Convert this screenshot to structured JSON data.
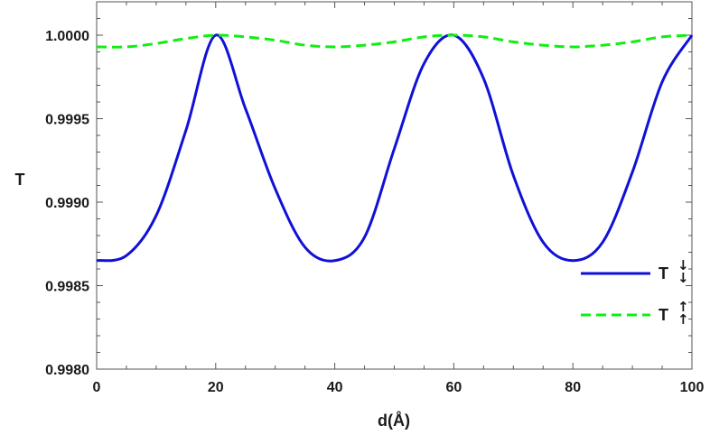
{
  "chart_data": {
    "type": "line",
    "title": "",
    "xlabel": "d(Å)",
    "ylabel": "T",
    "xlim": [
      0,
      100
    ],
    "ylim": [
      0.998,
      1.0002
    ],
    "grid": false,
    "legend_position": "right",
    "xticks": [
      0,
      20,
      40,
      60,
      80,
      100
    ],
    "xtick_labels": [
      "0",
      "20",
      "40",
      "60",
      "80",
      "100"
    ],
    "yticks": [
      0.998,
      0.9985,
      0.999,
      0.9995,
      1.0
    ],
    "ytick_labels": [
      "0.9980",
      "0.9985",
      "0.9990",
      "0.9995",
      "1.0000"
    ],
    "x": [
      0,
      5,
      10,
      15,
      20,
      25,
      30,
      35,
      40,
      45,
      50,
      55,
      60,
      65,
      70,
      75,
      80,
      85,
      90,
      95,
      100
    ],
    "series": [
      {
        "name": "T",
        "arrows": "↓↓",
        "color": "#1010d8",
        "style": "solid",
        "values": [
          0.99865,
          0.99868,
          0.99892,
          0.99943,
          1.0,
          0.99956,
          0.99908,
          0.99873,
          0.99865,
          0.99879,
          0.99932,
          0.99983,
          1.0,
          0.99974,
          0.99916,
          0.99876,
          0.99865,
          0.99876,
          0.99918,
          0.99972,
          1.0
        ]
      },
      {
        "name": "T",
        "arrows": "↑↑",
        "color": "#11ee11",
        "style": "dashed",
        "values": [
          0.99993,
          0.99993,
          0.99995,
          0.99998,
          1.0,
          0.99999,
          0.99997,
          0.99994,
          0.99993,
          0.99994,
          0.99996,
          0.99999,
          1.0,
          0.99999,
          0.99996,
          0.99994,
          0.99993,
          0.99994,
          0.99996,
          0.99999,
          1.0
        ]
      }
    ]
  }
}
